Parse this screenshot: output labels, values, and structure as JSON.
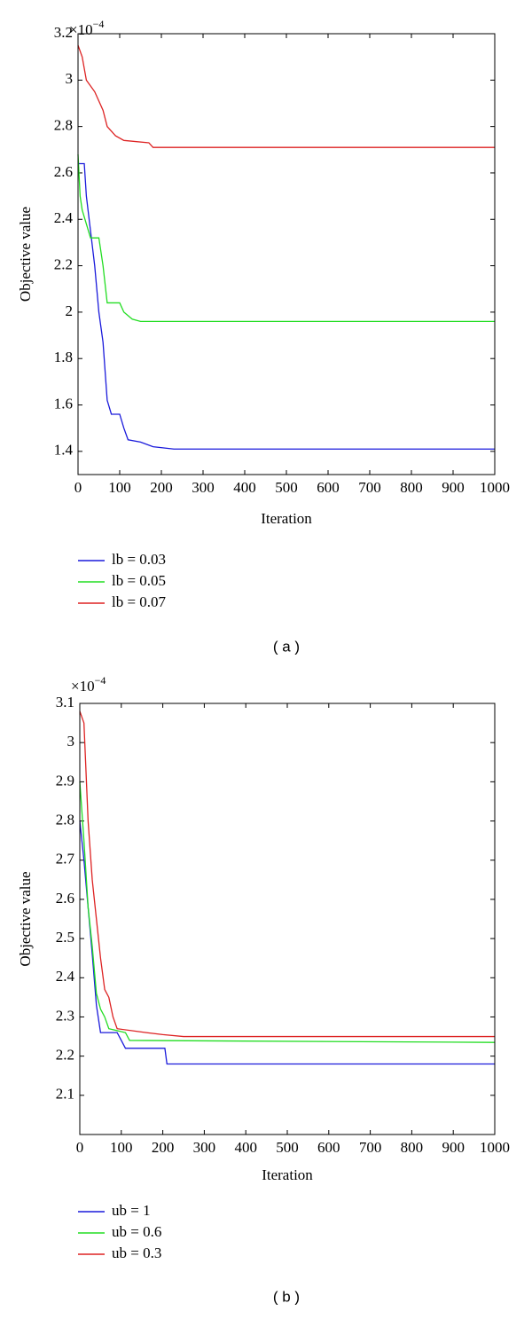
{
  "chart_data": [
    {
      "type": "line",
      "caption": "( a )",
      "x_label": "Iteration",
      "y_label": "Objective value",
      "y_scale": {
        "base": "×10",
        "exponent": "−4"
      },
      "xlim": [
        0,
        1000
      ],
      "xticks": [
        0,
        100,
        200,
        300,
        400,
        500,
        600,
        700,
        800,
        900,
        1000
      ],
      "ylim": [
        1.3,
        3.2
      ],
      "yticks": [
        1.4,
        1.6,
        1.8,
        2,
        2.2,
        2.4,
        2.6,
        2.8,
        3,
        3.2
      ],
      "series": [
        {
          "name": "lb = 0.03",
          "color": "#1a1adb",
          "x": [
            0,
            15,
            20,
            30,
            40,
            50,
            60,
            70,
            80,
            100,
            110,
            120,
            150,
            180,
            230,
            1000
          ],
          "values": [
            2.64,
            2.64,
            2.5,
            2.35,
            2.2,
            2.0,
            1.87,
            1.62,
            1.56,
            1.56,
            1.5,
            1.45,
            1.44,
            1.42,
            1.41,
            1.41
          ]
        },
        {
          "name": "lb = 0.05",
          "color": "#22dd22",
          "x": [
            0,
            5,
            10,
            30,
            50,
            60,
            70,
            100,
            110,
            130,
            150,
            1000
          ],
          "values": [
            2.68,
            2.5,
            2.44,
            2.32,
            2.32,
            2.2,
            2.04,
            2.04,
            2.0,
            1.97,
            1.96,
            1.96
          ]
        },
        {
          "name": "lb = 0.07",
          "color": "#dd2222",
          "x": [
            0,
            10,
            20,
            40,
            60,
            70,
            90,
            110,
            170,
            180,
            1000
          ],
          "values": [
            3.15,
            3.1,
            3.0,
            2.95,
            2.87,
            2.8,
            2.76,
            2.74,
            2.73,
            2.71,
            2.71
          ]
        }
      ]
    },
    {
      "type": "line",
      "caption": "( b )",
      "x_label": "Iteration",
      "y_label": "Objective value",
      "y_scale": {
        "base": "×10",
        "exponent": "−4"
      },
      "xlim": [
        0,
        1000
      ],
      "xticks": [
        0,
        100,
        200,
        300,
        400,
        500,
        600,
        700,
        800,
        900,
        1000
      ],
      "ylim": [
        2.0,
        3.1
      ],
      "yticks": [
        2.1,
        2.2,
        2.3,
        2.4,
        2.5,
        2.6,
        2.7,
        2.8,
        2.9,
        3,
        3.1
      ],
      "series": [
        {
          "name": "ub = 1",
          "color": "#1a1adb",
          "x": [
            0,
            10,
            20,
            30,
            40,
            50,
            90,
            100,
            110,
            205,
            210,
            1000
          ],
          "values": [
            2.8,
            2.7,
            2.58,
            2.46,
            2.33,
            2.26,
            2.26,
            2.24,
            2.22,
            2.22,
            2.18,
            2.18
          ]
        },
        {
          "name": "ub = 0.6",
          "color": "#22dd22",
          "x": [
            0,
            10,
            20,
            30,
            40,
            50,
            60,
            70,
            110,
            120,
            1000
          ],
          "values": [
            2.9,
            2.75,
            2.58,
            2.48,
            2.36,
            2.32,
            2.3,
            2.27,
            2.26,
            2.24,
            2.235
          ]
        },
        {
          "name": "ub = 0.3",
          "color": "#dd2222",
          "x": [
            0,
            10,
            20,
            30,
            40,
            50,
            60,
            70,
            80,
            90,
            160,
            200,
            250,
            1000
          ],
          "values": [
            3.08,
            3.05,
            2.8,
            2.65,
            2.55,
            2.45,
            2.37,
            2.35,
            2.3,
            2.27,
            2.26,
            2.255,
            2.25,
            2.25
          ]
        }
      ]
    }
  ]
}
